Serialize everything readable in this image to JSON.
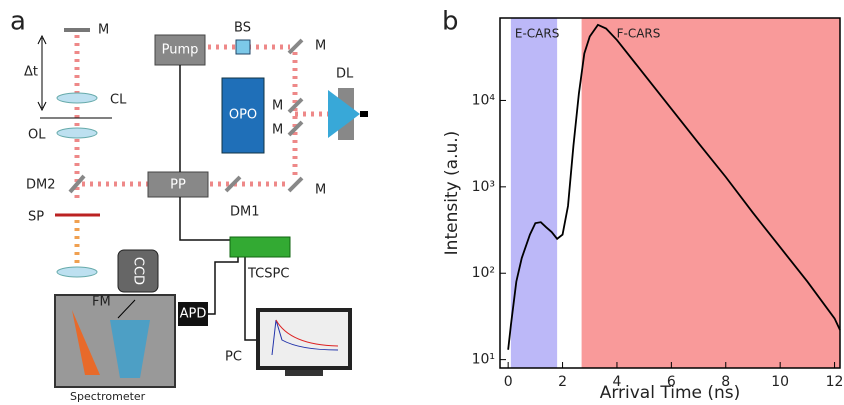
{
  "panel_labels": [
    "a",
    "b"
  ],
  "diagram": {
    "labels": [
      "M",
      "Δt",
      "CL",
      "OL",
      "DM2",
      "SP",
      "Pump",
      "BS",
      "M",
      "DL",
      "OPO",
      "M",
      "M",
      "PP",
      "DM1",
      "M",
      "TCSPC",
      "CCD",
      "FM",
      "APD",
      "PC",
      "Spectrometer"
    ]
  },
  "chart_data": {
    "type": "line",
    "x_label": "Arrival Time (ns)",
    "y_label": "Intensity (a.u.)",
    "log_y": true,
    "xlim": [
      -0.3,
      12.2
    ],
    "ylim": [
      8,
      90000
    ],
    "xticks": [
      0,
      2,
      4,
      6,
      8,
      10,
      12
    ],
    "yticks": [
      {
        "value": 10,
        "label": "10¹"
      },
      {
        "value": 100,
        "label": "10²"
      },
      {
        "value": 1000,
        "label": "10³"
      },
      {
        "value": 10000,
        "label": "10⁴"
      }
    ],
    "regions": [
      {
        "name": "E-CARS",
        "start": 0.1,
        "end": 1.8,
        "color": "#bcb8f8"
      },
      {
        "name": "F-CARS",
        "start": 2.7,
        "end": 12.2,
        "color": "#f99a9a"
      }
    ],
    "series": [
      {
        "color": "#000000",
        "x": [
          0,
          0.1,
          0.3,
          0.5,
          0.8,
          1.0,
          1.2,
          1.4,
          1.6,
          1.8,
          2.0,
          2.2,
          2.4,
          2.6,
          2.8,
          3.0,
          3.3,
          3.6,
          4,
          5,
          6,
          7,
          8,
          9,
          10,
          11,
          12,
          12.2
        ],
        "values": [
          13,
          25,
          80,
          150,
          280,
          380,
          390,
          340,
          300,
          250,
          280,
          600,
          3000,
          12000,
          35000,
          55000,
          75000,
          68000,
          50000,
          20000,
          8000,
          3200,
          1300,
          500,
          200,
          80,
          30,
          22
        ]
      }
    ]
  }
}
